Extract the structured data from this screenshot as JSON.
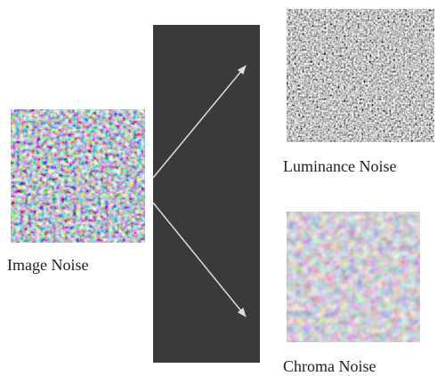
{
  "nodes": [
    {
      "label": "Image Noise"
    },
    {
      "label": "Luminance Noise"
    },
    {
      "label": "Chroma Noise"
    }
  ]
}
